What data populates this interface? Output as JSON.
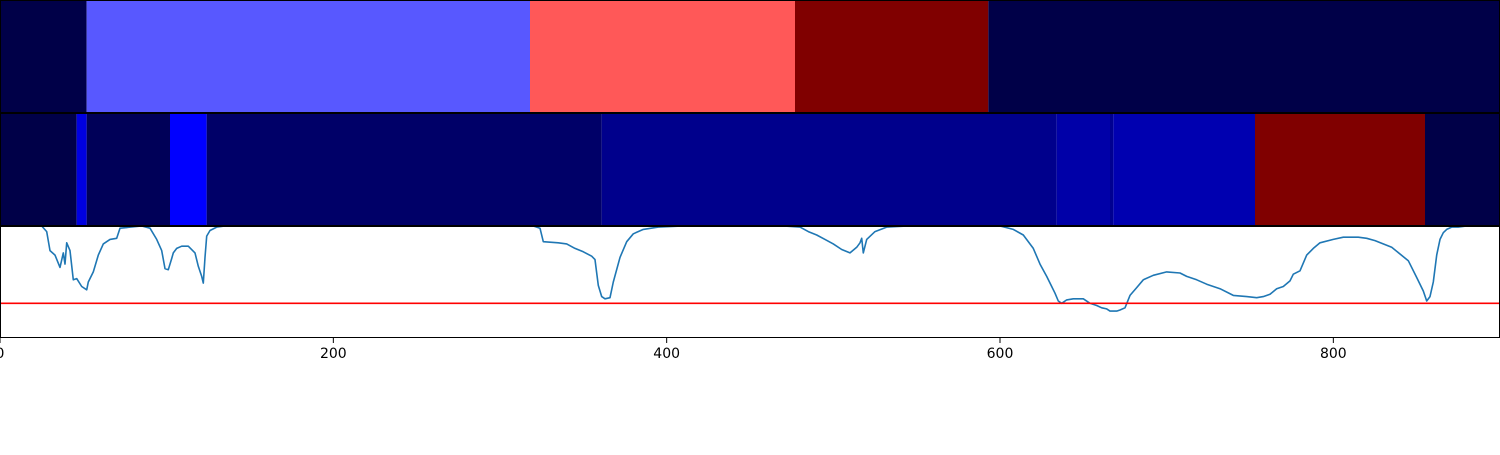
{
  "chart_data": [
    {
      "type": "heatmap",
      "xlim": [
        0,
        900
      ],
      "segments": [
        {
          "x0": 0,
          "x1": 52,
          "color": "#000048"
        },
        {
          "x0": 52,
          "x1": 318,
          "color": "#5858ff"
        },
        {
          "x0": 318,
          "x1": 477,
          "color": "#ff5858"
        },
        {
          "x0": 477,
          "x1": 593,
          "color": "#800000"
        },
        {
          "x0": 593,
          "x1": 900,
          "color": "#000048"
        }
      ]
    },
    {
      "type": "heatmap",
      "xlim": [
        0,
        900
      ],
      "segments": [
        {
          "x0": 0,
          "x1": 46,
          "color": "#000048"
        },
        {
          "x0": 46,
          "x1": 52,
          "color": "#0000e0"
        },
        {
          "x0": 52,
          "x1": 102,
          "color": "#000058"
        },
        {
          "x0": 102,
          "x1": 124,
          "color": "#0000ff"
        },
        {
          "x0": 124,
          "x1": 361,
          "color": "#000068"
        },
        {
          "x0": 361,
          "x1": 634,
          "color": "#00008c"
        },
        {
          "x0": 634,
          "x1": 666,
          "color": "#0000a8"
        },
        {
          "x0": 666,
          "x1": 668,
          "color": "#000090"
        },
        {
          "x0": 668,
          "x1": 753,
          "color": "#0000b0"
        },
        {
          "x0": 753,
          "x1": 855,
          "color": "#800000"
        },
        {
          "x0": 855,
          "x1": 900,
          "color": "#000048"
        }
      ]
    },
    {
      "type": "line",
      "xlim": [
        0,
        900
      ],
      "ylim": [
        0,
        1
      ],
      "grid": false,
      "x_ticks": [
        0,
        200,
        400,
        600,
        800
      ],
      "x_tick_labels": [
        "0",
        "200",
        "400",
        "600",
        "800"
      ],
      "threshold": 0.31,
      "threshold_color": "#ff0000",
      "series_color": "#1f77b4",
      "series": [
        {
          "x": [
            0,
            25,
            28,
            30,
            33,
            36,
            38,
            39,
            40,
            42,
            44,
            46,
            49,
            52,
            53,
            56,
            59,
            62,
            66,
            70,
            72,
            85,
            90,
            94,
            97,
            99,
            101,
            103,
            104,
            106,
            109,
            113,
            117,
            119,
            121,
            122,
            123,
            124,
            126,
            130,
            135,
            140,
            200,
            260,
            320,
            324,
            326,
            335,
            340,
            345,
            350,
            355,
            357,
            358,
            359,
            361,
            363,
            366,
            368,
            372,
            376,
            380,
            386,
            395,
            410,
            440,
            470,
            480,
            485,
            490,
            495,
            500,
            505,
            510,
            514,
            516,
            517,
            518,
            520,
            525,
            532,
            545,
            560,
            580,
            600,
            608,
            614,
            620,
            624,
            628,
            631,
            633,
            635,
            637,
            640,
            644,
            650,
            654,
            658,
            661,
            664,
            666,
            668,
            670,
            672,
            675,
            678,
            682,
            686,
            692,
            700,
            708,
            712,
            718,
            724,
            732,
            740,
            748,
            754,
            758,
            762,
            766,
            770,
            774,
            776,
            780,
            784,
            788,
            792,
            800,
            806,
            810,
            815,
            820,
            825,
            835,
            845,
            850,
            854,
            856,
            858,
            860,
            862,
            864,
            866,
            868,
            871,
            875,
            880,
            890,
            900
          ],
          "y": [
            1.0,
            1.0,
            0.95,
            0.78,
            0.74,
            0.63,
            0.76,
            0.66,
            0.85,
            0.78,
            0.52,
            0.53,
            0.46,
            0.43,
            0.5,
            0.59,
            0.74,
            0.84,
            0.88,
            0.89,
            0.98,
            1.0,
            0.98,
            0.88,
            0.78,
            0.62,
            0.61,
            0.71,
            0.76,
            0.8,
            0.82,
            0.82,
            0.76,
            0.64,
            0.55,
            0.49,
            0.72,
            0.91,
            0.96,
            0.99,
            1.0,
            1.0,
            1.0,
            1.0,
            1.0,
            0.98,
            0.86,
            0.85,
            0.84,
            0.8,
            0.77,
            0.73,
            0.7,
            0.58,
            0.47,
            0.37,
            0.35,
            0.36,
            0.5,
            0.72,
            0.86,
            0.93,
            0.97,
            0.99,
            1.0,
            1.0,
            1.0,
            0.99,
            0.95,
            0.92,
            0.88,
            0.84,
            0.79,
            0.76,
            0.81,
            0.85,
            0.89,
            0.76,
            0.88,
            0.95,
            0.99,
            1.0,
            1.0,
            1.0,
            1.0,
            0.97,
            0.92,
            0.8,
            0.66,
            0.55,
            0.46,
            0.4,
            0.33,
            0.31,
            0.34,
            0.35,
            0.35,
            0.31,
            0.29,
            0.27,
            0.26,
            0.24,
            0.24,
            0.24,
            0.25,
            0.27,
            0.38,
            0.45,
            0.52,
            0.56,
            0.59,
            0.58,
            0.55,
            0.52,
            0.48,
            0.44,
            0.38,
            0.37,
            0.36,
            0.37,
            0.39,
            0.44,
            0.46,
            0.51,
            0.57,
            0.6,
            0.74,
            0.8,
            0.85,
            0.88,
            0.9,
            0.9,
            0.9,
            0.89,
            0.87,
            0.81,
            0.69,
            0.54,
            0.42,
            0.33,
            0.37,
            0.5,
            0.74,
            0.88,
            0.94,
            0.97,
            0.99,
            0.99,
            1.0,
            1.0,
            1.0
          ]
        }
      ]
    }
  ]
}
